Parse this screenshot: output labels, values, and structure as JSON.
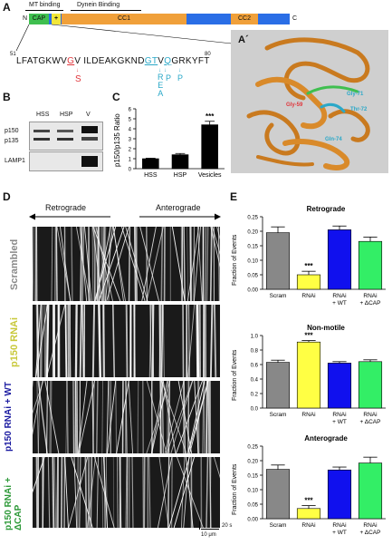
{
  "panelA": {
    "letter": "A",
    "mt_binding": "MT binding",
    "dynein_binding": "Dynein Binding",
    "n_term": "N",
    "c_term": "C",
    "cap": "CAP",
    "plus": "+",
    "cc1": "CC1",
    "cc2": "CC2",
    "res_start": "51",
    "res_end": "80",
    "sequence_a": "LFATGKWV",
    "seq_g": "G",
    "sequence_b": "V ILDEAKGKND",
    "seq_gt": "GT",
    "seq_v": "V",
    "seq_q": "Q",
    "sequence_c": "GRKYFT",
    "mut_s": "S",
    "mut_col1": [
      "R",
      "E",
      "A"
    ],
    "mut_col2": [
      "P"
    ],
    "mut_col3": [
      "P"
    ]
  },
  "panelA2": {
    "letter": "A´",
    "gly59": "Gly-59",
    "gly71": "Gly-71",
    "thr72": "Thr-72",
    "gln74": "Gln-74"
  },
  "panelB": {
    "letter": "B",
    "cols": [
      "HSS",
      "HSP",
      "V"
    ],
    "p150": "p150",
    "p135": "p135",
    "lamp1": "LAMP1"
  },
  "panelC": {
    "letter": "C",
    "chart_data": {
      "type": "bar",
      "categories": [
        "HSS",
        "HSP",
        "Vesicles"
      ],
      "values": [
        1.0,
        1.4,
        4.4
      ],
      "errors": [
        0.05,
        0.12,
        0.35
      ],
      "ylabel": "p150/p135 Ratio",
      "ylim": [
        0,
        6
      ],
      "yticks": [
        "0",
        "1",
        "2",
        "3",
        "4",
        "5",
        "6"
      ],
      "annotation": "***",
      "colors": [
        "#000000",
        "#000000",
        "#000000"
      ]
    }
  },
  "panelD": {
    "letter": "D",
    "retrograde": "Retrograde",
    "anterograde": "Anterograde",
    "rows": [
      "Scrambled",
      "p150 RNAi",
      "p150 RNAi + WT",
      "p150 RNAi + ΔCAP"
    ],
    "row_colors": [
      "#8a8a8a",
      "#c8c83a",
      "#1a1aa0",
      "#2f9a3a"
    ],
    "scale_time": "20 s",
    "scale_dist": "10 μm"
  },
  "panelE": {
    "letter": "E",
    "charts": [
      {
        "title": "Retrograde",
        "type": "bar",
        "categories": [
          "Scram",
          "RNAi",
          "RNAi + WT",
          "RNAi + ΔCAP"
        ],
        "values": [
          0.195,
          0.05,
          0.205,
          0.165
        ],
        "errors": [
          0.02,
          0.012,
          0.013,
          0.015
        ],
        "ylabel": "Fraction of Events",
        "ylim": [
          0,
          0.25
        ],
        "yticks": [
          "0.00",
          "0.05",
          "0.10",
          "0.15",
          "0.20",
          "0.25"
        ],
        "annotation": "***",
        "colors": [
          "#888888",
          "#ffff44",
          "#1010ee",
          "#33ee66"
        ]
      },
      {
        "title": "Non-motile",
        "type": "bar",
        "categories": [
          "Scram",
          "RNAi",
          "RNAi + WT",
          "RNAi + ΔCAP"
        ],
        "values": [
          0.63,
          0.91,
          0.62,
          0.64
        ],
        "errors": [
          0.03,
          0.02,
          0.02,
          0.025
        ],
        "ylabel": "Fraction of Events",
        "ylim": [
          0,
          1.0
        ],
        "yticks": [
          "0.0",
          "0.2",
          "0.4",
          "0.6",
          "0.8",
          "1.0"
        ],
        "annotation": "***",
        "colors": [
          "#888888",
          "#ffff44",
          "#1010ee",
          "#33ee66"
        ]
      },
      {
        "title": "Anterograde",
        "type": "bar",
        "categories": [
          "Scram",
          "RNAi",
          "RNAi + WT",
          "RNAi + ΔCAP"
        ],
        "values": [
          0.17,
          0.035,
          0.168,
          0.192
        ],
        "errors": [
          0.015,
          0.01,
          0.01,
          0.02
        ],
        "ylabel": "Fraction of Events",
        "ylim": [
          0,
          0.25
        ],
        "yticks": [
          "0.00",
          "0.05",
          "0.10",
          "0.15",
          "0.20",
          "0.25"
        ],
        "annotation": "***",
        "colors": [
          "#888888",
          "#ffff44",
          "#1010ee",
          "#33ee66"
        ]
      }
    ]
  }
}
